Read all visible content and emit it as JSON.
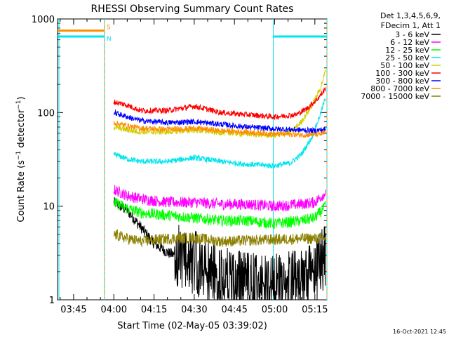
{
  "chart_data": {
    "type": "line",
    "title": "RHESSI Observing Summary Count Rates",
    "xlabel": "Start Time (02-May-05 03:39:02)",
    "ylabel_main": "Count Rate (s",
    "ylabel_sup1": "−1",
    "ylabel_mid": " detector",
    "ylabel_sup2": "−1",
    "ylabel_end": ")",
    "y_scale": "log",
    "ylim": [
      1,
      1000
    ],
    "xlim_minutes": [
      -21,
      79.5
    ],
    "x_ticks": [
      {
        "label": "03:45",
        "min": -15
      },
      {
        "label": "04:00",
        "min": 0
      },
      {
        "label": "04:15",
        "min": 15
      },
      {
        "label": "04:30",
        "min": 30
      },
      {
        "label": "04:45",
        "min": 45
      },
      {
        "label": "05:00",
        "min": 60
      },
      {
        "label": "05:15",
        "min": 75
      }
    ],
    "y_ticks": [
      {
        "label": "1",
        "value": 1
      },
      {
        "label": "10",
        "value": 10
      },
      {
        "label": "100",
        "value": 100
      },
      {
        "label": "1000",
        "value": 1000
      }
    ],
    "legend_header": [
      "Det 1,3,4,5,6,9,",
      "FDecim 1, Att 1"
    ],
    "legend_position": "outside-right",
    "flags": {
      "S_label": "S",
      "N_label": "N",
      "S_color": "#ff8c00",
      "N_color": "#00e5ee",
      "S_value": 750,
      "N_value": 650,
      "S_segments": [
        [
          -21,
          -3.5
        ]
      ],
      "N_segments": [
        [
          -21,
          -3.5
        ],
        [
          59.5,
          79.5
        ]
      ]
    },
    "night_markers_min": [
      -3.5,
      79.5
    ],
    "saa_marker_min": 59.5,
    "series": [
      {
        "name": "3 - 6 keV",
        "color": "#000000",
        "x": [
          0,
          5,
          10,
          15,
          20,
          30,
          40,
          50,
          60,
          70,
          75,
          79
        ],
        "y": [
          11,
          9,
          6,
          4,
          3.2,
          2.5,
          1.8,
          1.5,
          1.4,
          1.6,
          2,
          3
        ]
      },
      {
        "name": "6 - 12 keV",
        "color": "#ff00ff",
        "x": [
          0,
          5,
          10,
          20,
          30,
          40,
          50,
          60,
          70,
          75,
          79
        ],
        "y": [
          15,
          13,
          12,
          11,
          11,
          10.5,
          10.5,
          10,
          10.5,
          11,
          14
        ]
      },
      {
        "name": "12 - 25 keV",
        "color": "#00ff00",
        "x": [
          0,
          5,
          10,
          20,
          30,
          40,
          50,
          60,
          70,
          75,
          79
        ],
        "y": [
          11,
          9.5,
          8.5,
          8,
          7.5,
          7,
          7,
          6.5,
          7,
          7.5,
          10
        ]
      },
      {
        "name": "25 - 50 keV",
        "color": "#00e5ee",
        "x": [
          0,
          5,
          10,
          20,
          30,
          40,
          50,
          60,
          66,
          70,
          74,
          77,
          79
        ],
        "y": [
          36,
          32,
          30,
          30,
          33,
          30,
          28,
          27,
          29,
          36,
          55,
          95,
          145
        ]
      },
      {
        "name": "50 - 100 keV",
        "color": "#d0d000",
        "x": [
          0,
          5,
          10,
          20,
          30,
          40,
          50,
          60,
          66,
          70,
          74,
          77,
          79
        ],
        "y": [
          70,
          65,
          62,
          62,
          65,
          61,
          59,
          57,
          62,
          80,
          120,
          180,
          280
        ]
      },
      {
        "name": "100 - 300 keV",
        "color": "#ff0000",
        "x": [
          0,
          5,
          10,
          20,
          30,
          40,
          50,
          60,
          68,
          72,
          76,
          79
        ],
        "y": [
          130,
          120,
          105,
          105,
          117,
          100,
          95,
          90,
          95,
          110,
          140,
          180
        ]
      },
      {
        "name": "300 - 800 keV",
        "color": "#0000ff",
        "x": [
          0,
          5,
          10,
          20,
          30,
          40,
          50,
          60,
          70,
          75,
          79
        ],
        "y": [
          100,
          90,
          82,
          78,
          80,
          75,
          70,
          67,
          65,
          64,
          66
        ]
      },
      {
        "name": "800 - 7000 keV",
        "color": "#ff8c00",
        "x": [
          0,
          5,
          10,
          20,
          30,
          40,
          50,
          60,
          70,
          75,
          79
        ],
        "y": [
          78,
          72,
          68,
          66,
          68,
          64,
          62,
          59,
          58,
          58,
          60
        ]
      },
      {
        "name": "7000 - 15000 keV",
        "color": "#8b8000",
        "x": [
          0,
          5,
          10,
          20,
          30,
          40,
          50,
          60,
          70,
          75,
          79
        ],
        "y": [
          5,
          4.5,
          4.2,
          4.5,
          4.6,
          4.2,
          4.3,
          4.4,
          4.5,
          4.5,
          4.6
        ]
      }
    ]
  },
  "footer": {
    "timestamp": "16-Oct-2021 12:45"
  }
}
